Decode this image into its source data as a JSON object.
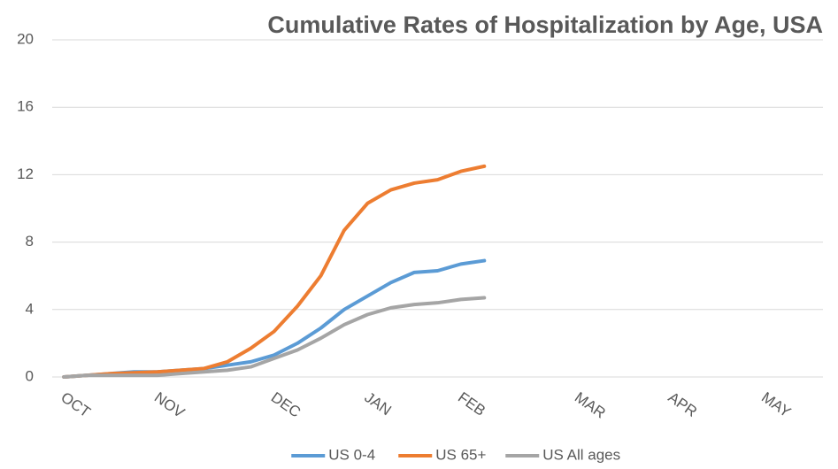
{
  "chart_data": {
    "type": "line",
    "title": "Cumulative Rates of Hospitalization by Age, USA",
    "categories": [
      "OCT",
      null,
      null,
      null,
      "NOV",
      null,
      null,
      null,
      null,
      "DEC",
      null,
      null,
      null,
      "JAN",
      null,
      null,
      null,
      "FEB",
      null,
      null,
      null,
      null,
      "MAR",
      null,
      null,
      null,
      "APR",
      null,
      null,
      null,
      "MAY",
      null,
      null
    ],
    "series": [
      {
        "name": "US 0-4",
        "color": "#5b9bd5",
        "values": [
          0,
          0.1,
          0.2,
          0.3,
          0.3,
          0.4,
          0.5,
          0.7,
          0.9,
          1.3,
          2.0,
          2.9,
          4.0,
          4.8,
          5.6,
          6.2,
          6.3,
          6.7,
          6.9,
          null,
          null,
          null,
          null,
          null,
          null,
          null,
          null,
          null,
          null,
          null,
          null,
          null,
          null
        ]
      },
      {
        "name": "US 65+",
        "color": "#ed7d31",
        "values": [
          0,
          0.1,
          0.2,
          0.25,
          0.3,
          0.4,
          0.5,
          0.9,
          1.7,
          2.7,
          4.2,
          6.0,
          8.7,
          10.3,
          11.1,
          11.5,
          11.7,
          12.2,
          12.5,
          null,
          null,
          null,
          null,
          null,
          null,
          null,
          null,
          null,
          null,
          null,
          null,
          null,
          null
        ]
      },
      {
        "name": "US All ages",
        "color": "#a5a5a5",
        "values": [
          0,
          0.1,
          0.1,
          0.1,
          0.1,
          0.2,
          0.3,
          0.4,
          0.6,
          1.1,
          1.6,
          2.3,
          3.1,
          3.7,
          4.1,
          4.3,
          4.4,
          4.6,
          4.7,
          null,
          null,
          null,
          null,
          null,
          null,
          null,
          null,
          null,
          null,
          null,
          null,
          null,
          null
        ]
      }
    ],
    "ylim": [
      0,
      20
    ],
    "yticks": [
      0,
      4,
      8,
      12,
      16,
      20
    ],
    "grid": true,
    "legend": "bottom"
  }
}
